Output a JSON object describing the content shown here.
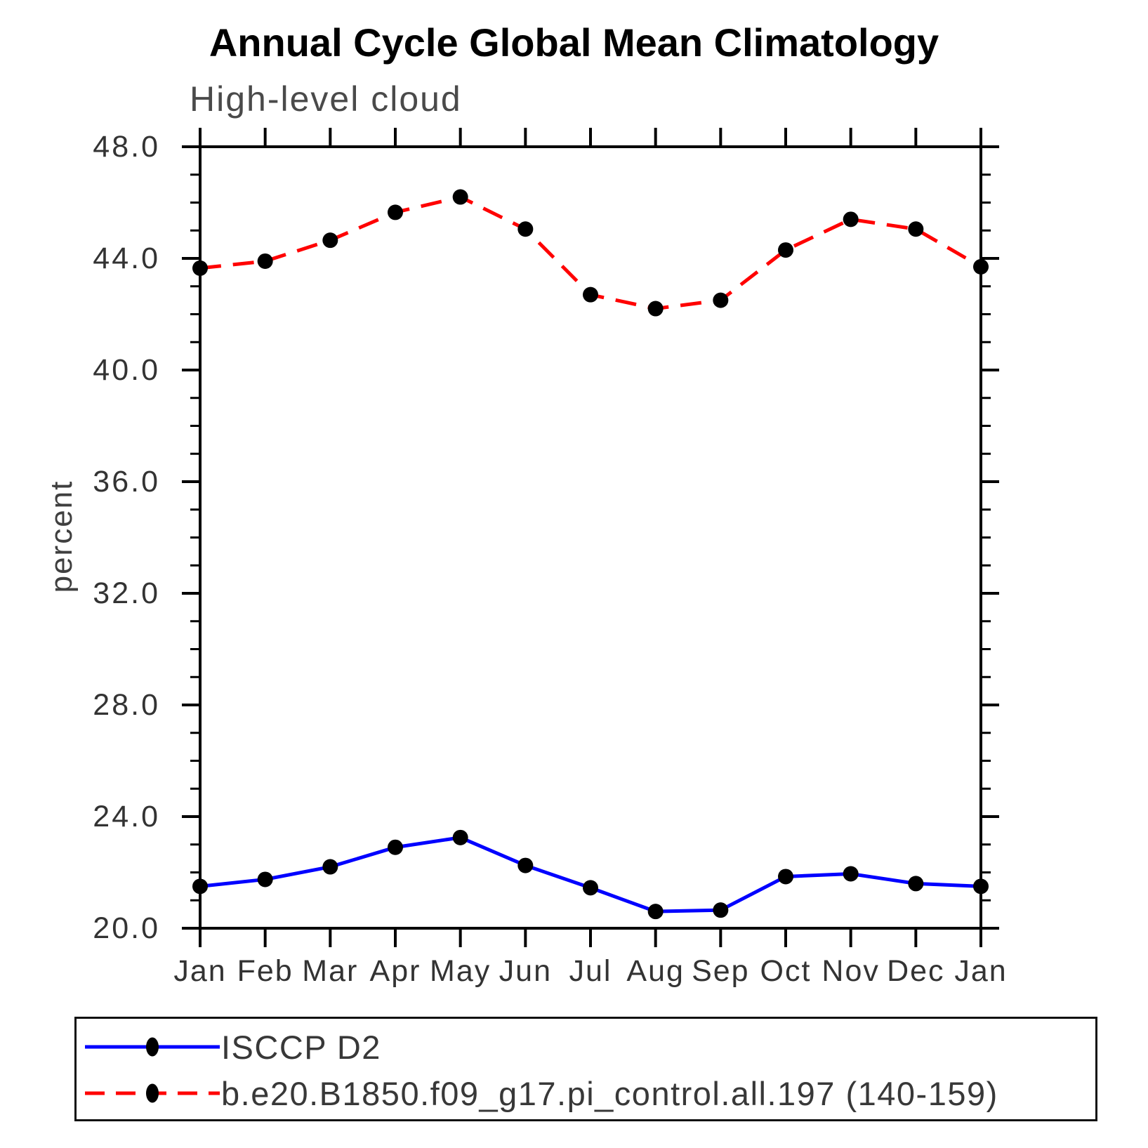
{
  "chart_data": {
    "type": "line",
    "title": "Annual Cycle Global Mean Climatology",
    "subtitle": "High-level cloud",
    "ylabel": "percent",
    "ylim": [
      20.0,
      48.0
    ],
    "y_major_tick_step": 4.0,
    "y_minor_tick_step": 1.0,
    "y_tick_labels": [
      "20.0",
      "24.0",
      "28.0",
      "32.0",
      "36.0",
      "40.0",
      "44.0",
      "48.0"
    ],
    "x_tick_labels": [
      "Jan",
      "Feb",
      "Mar",
      "Apr",
      "May",
      "Jun",
      "Jul",
      "Aug",
      "Sep",
      "Oct",
      "Nov",
      "Dec",
      "Jan"
    ],
    "grid": false,
    "legend_position": "bottom",
    "series": [
      {
        "name": "ISCCP D2",
        "line_color": "#0000ff",
        "line_style": "solid",
        "marker": "filled-circle",
        "marker_color": "#000000",
        "values": [
          21.5,
          21.75,
          22.2,
          22.9,
          23.25,
          22.25,
          21.45,
          20.6,
          20.65,
          21.85,
          21.95,
          21.6,
          21.5
        ]
      },
      {
        "name": "b.e20.B1850.f09_g17.pi_control.all.197 (140-159)",
        "line_color": "#ff0000",
        "line_style": "dashed",
        "marker": "filled-circle",
        "marker_color": "#000000",
        "values": [
          43.65,
          43.9,
          44.65,
          45.65,
          46.2,
          45.05,
          42.7,
          42.2,
          42.5,
          44.3,
          45.4,
          45.05,
          43.7
        ]
      }
    ]
  }
}
